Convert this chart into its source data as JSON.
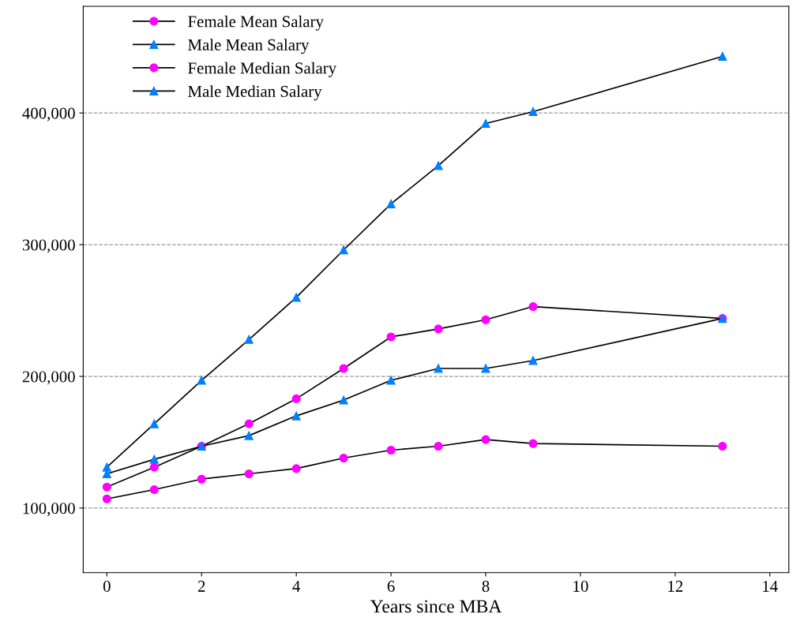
{
  "chart_data": {
    "type": "line",
    "xlabel": "Years since MBA",
    "x": [
      0,
      1,
      2,
      3,
      4,
      5,
      6,
      7,
      8,
      9,
      13
    ],
    "series": [
      {
        "name": "Female Mean Salary",
        "color": "#ff00ff",
        "marker": "circle",
        "values": [
          116000,
          131000,
          147000,
          164000,
          183000,
          206000,
          230000,
          236000,
          243000,
          253000,
          244000
        ]
      },
      {
        "name": "Male Mean Salary",
        "color": "#0080ff",
        "marker": "triangle",
        "values": [
          131000,
          164000,
          197000,
          228000,
          260000,
          296000,
          331000,
          360000,
          392000,
          401000,
          443000
        ]
      },
      {
        "name": "Female Median Salary",
        "color": "#ff00ff",
        "marker": "circle",
        "values": [
          107000,
          114000,
          122000,
          126000,
          130000,
          138000,
          144000,
          147000,
          152000,
          149000,
          147000
        ]
      },
      {
        "name": "Male Median Salary",
        "color": "#0080ff",
        "marker": "triangle",
        "values": [
          126000,
          137000,
          147000,
          155000,
          170000,
          182000,
          197000,
          206000,
          206000,
          212000,
          244000
        ]
      }
    ],
    "xlim": [
      -0.5,
      14.4
    ],
    "xticks": [
      0,
      2,
      4,
      6,
      8,
      10,
      12,
      14
    ],
    "ylim": [
      51000,
      481000
    ],
    "yticks": [
      {
        "value": 100000,
        "label": "100,000"
      },
      {
        "value": 200000,
        "label": "200,000"
      },
      {
        "value": 300000,
        "label": "300,000"
      },
      {
        "value": 400000,
        "label": "400,000"
      }
    ],
    "grid": "y",
    "legend": "top left",
    "line_style": "solid"
  }
}
